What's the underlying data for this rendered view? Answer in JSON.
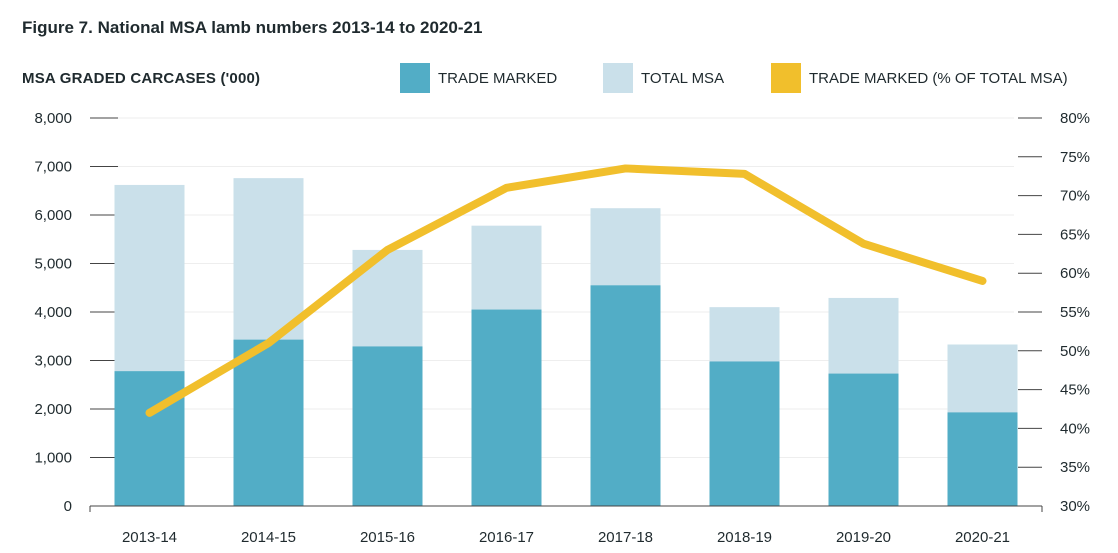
{
  "figure_number": "Figure 7.",
  "figure_title": "National MSA lamb numbers 2013-14 to 2020-21",
  "chart_data": {
    "type": "bar",
    "title": "Figure 7. National MSA lamb numbers 2013-14 to 2020-21",
    "ylabel": "MSA GRADED CARCASES ('000)",
    "xlabel": "",
    "categories": [
      "2013-14",
      "2014-15",
      "2015-16",
      "2016-17",
      "2017-18",
      "2018-19",
      "2019-20",
      "2020-21"
    ],
    "ylim": [
      0,
      8000
    ],
    "y_ticks": [
      "0",
      "1,000",
      "2,000",
      "3,000",
      "4,000",
      "5,000",
      "6,000",
      "7,000",
      "8,000"
    ],
    "y2lim": [
      30,
      80
    ],
    "y2_ticks": [
      "30%",
      "35%",
      "40%",
      "45%",
      "50%",
      "55%",
      "60%",
      "65%",
      "70%",
      "75%",
      "80%"
    ],
    "legend_position": "top-right",
    "series": [
      {
        "name": "TRADE MARKED",
        "type": "bar",
        "axis": "left",
        "color": "#52adc6",
        "values": [
          2780,
          3430,
          3290,
          4050,
          4550,
          2980,
          2730,
          1930
        ]
      },
      {
        "name": "TOTAL MSA",
        "type": "bar",
        "axis": "left",
        "color": "#cae0ea",
        "values": [
          6620,
          6760,
          5280,
          5780,
          6140,
          4100,
          4290,
          3330
        ]
      },
      {
        "name": "TRADE MARKED (% OF TOTAL MSA)",
        "type": "line",
        "axis": "right",
        "color": "#f1bf2c",
        "values": [
          42,
          51,
          63,
          71,
          73.5,
          72.8,
          63.8,
          59
        ]
      }
    ]
  }
}
